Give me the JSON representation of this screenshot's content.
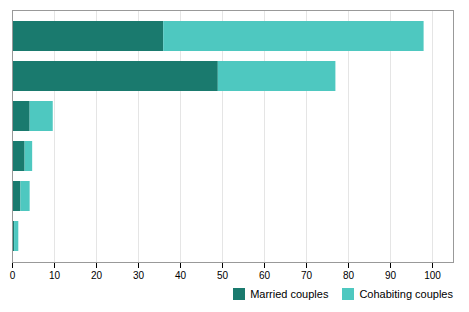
{
  "chart_data": {
    "type": "bar",
    "orientation": "horizontal",
    "stacked": true,
    "categories": [
      null,
      null,
      null,
      null,
      null,
      null
    ],
    "series": [
      {
        "name": "Married couples",
        "color": "#1a7a6e",
        "values": [
          36,
          49,
          4.2,
          3.0,
          2.0,
          0.5
        ]
      },
      {
        "name": "Cohabiting couples",
        "color": "#4ec8c0",
        "values": [
          62,
          28,
          5.5,
          1.8,
          2.2,
          1.0
        ]
      }
    ],
    "xlim": [
      0,
      105
    ],
    "xticks": [
      0,
      10,
      20,
      30,
      40,
      50,
      60,
      70,
      80,
      90,
      100
    ],
    "grid": true,
    "legend": "lower right",
    "tick_labels": "x"
  }
}
